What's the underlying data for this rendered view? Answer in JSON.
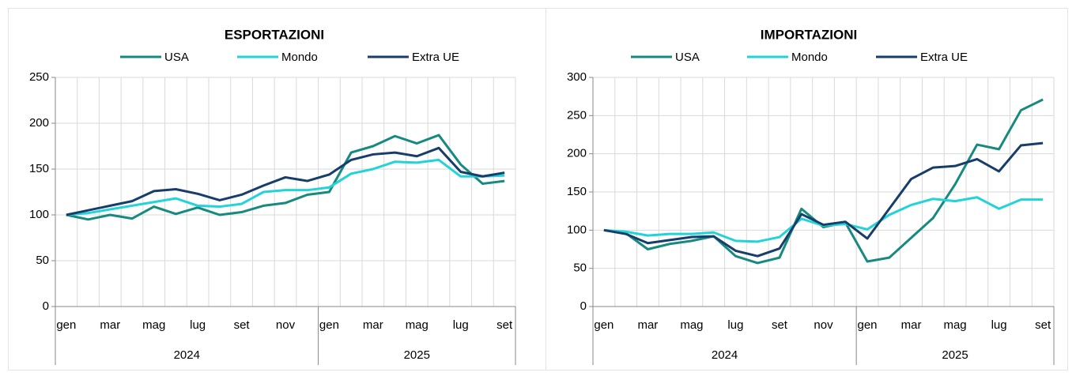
{
  "chart_data": [
    {
      "type": "line",
      "title": "ESPORTAZIONI",
      "categories": [
        "gen",
        null,
        "mar",
        null,
        "mag",
        null,
        "lug",
        null,
        "set",
        null,
        "nov",
        null,
        "gen",
        null,
        "mar",
        null,
        "mag",
        null,
        "lug",
        null,
        "set"
      ],
      "years": [
        "2024",
        "2025"
      ],
      "ylim": [
        0,
        250
      ],
      "yticks": [
        0,
        50,
        100,
        150,
        200,
        250
      ],
      "grid": true,
      "legend": "top",
      "series": [
        {
          "name": "USA",
          "color": "#178a80",
          "values": [
            100,
            95,
            100,
            96,
            109,
            101,
            108,
            100,
            103,
            110,
            113,
            122,
            125,
            168,
            175,
            186,
            178,
            187,
            155,
            134,
            137
          ]
        },
        {
          "name": "Mondo",
          "color": "#22d3d8",
          "values": [
            100,
            102,
            106,
            110,
            114,
            118,
            110,
            109,
            112,
            125,
            127,
            127,
            130,
            145,
            150,
            158,
            157,
            160,
            142,
            142,
            143
          ]
        },
        {
          "name": "Extra UE",
          "color": "#173d6b",
          "values": [
            100,
            105,
            110,
            115,
            126,
            128,
            123,
            116,
            122,
            132,
            141,
            137,
            144,
            160,
            166,
            168,
            164,
            173,
            147,
            142,
            146
          ]
        }
      ]
    },
    {
      "type": "line",
      "title": "IMPORTAZIONI",
      "categories": [
        "gen",
        null,
        "mar",
        null,
        "mag",
        null,
        "lug",
        null,
        "set",
        null,
        "nov",
        null,
        "gen",
        null,
        "mar",
        null,
        "mag",
        null,
        "lug",
        null,
        "set"
      ],
      "years": [
        "2024",
        "2025"
      ],
      "ylim": [
        0,
        300
      ],
      "yticks": [
        0,
        50,
        100,
        150,
        200,
        250,
        300
      ],
      "grid": true,
      "legend": "top",
      "series": [
        {
          "name": "USA",
          "color": "#178a80",
          "values": [
            100,
            96,
            75,
            82,
            86,
            92,
            66,
            57,
            64,
            128,
            104,
            110,
            59,
            64,
            90,
            116,
            160,
            212,
            206,
            257,
            271
          ]
        },
        {
          "name": "Mondo",
          "color": "#22d3d8",
          "values": [
            100,
            98,
            93,
            95,
            95,
            97,
            86,
            85,
            91,
            115,
            106,
            108,
            101,
            120,
            133,
            141,
            138,
            143,
            128,
            140,
            140
          ]
        },
        {
          "name": "Extra UE",
          "color": "#173d6b",
          "values": [
            100,
            95,
            83,
            87,
            91,
            92,
            73,
            66,
            76,
            121,
            107,
            111,
            89,
            128,
            167,
            182,
            184,
            193,
            177,
            211,
            214
          ]
        }
      ]
    }
  ]
}
